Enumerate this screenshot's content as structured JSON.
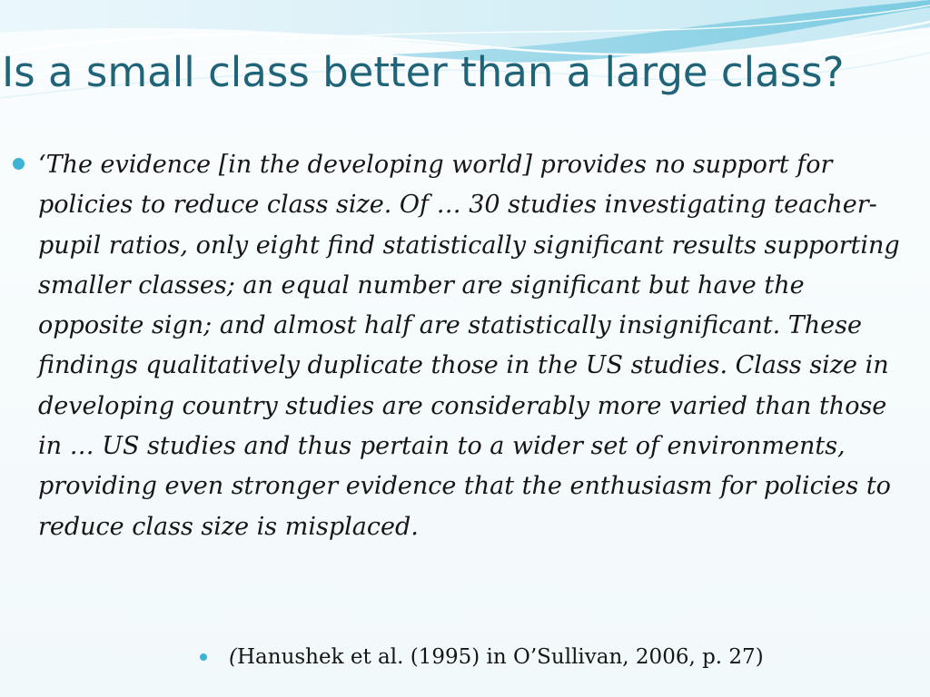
{
  "slide": {
    "title": "Is a small class better than a large class?",
    "quote": "‘The evidence [in the developing world] provides no support for policies to reduce class size. Of … 30 studies investigating teacher-pupil ratios, only eight find statistically significant results supporting smaller classes; an equal number are significant but have the opposite sign; and almost half are statistically insignificant. These findings qualitatively duplicate those in the US studies. Class size in developing country studies are considerably more varied than those in … US studies and thus pertain to a wider set of environments, providing even stronger evidence that the enthusiasm for policies to reduce class size is misplaced.",
    "citation_open": "(",
    "citation": "Hanushek et al. (1995) in O’Sullivan, 2006, p. 27)"
  },
  "colors": {
    "title": "#1f6478",
    "accent": "#3fb3d3",
    "wave_light": "#bfe7f1",
    "wave_mid": "#8fd3e6",
    "wave_dark": "#58bcd6",
    "text": "#161616"
  }
}
